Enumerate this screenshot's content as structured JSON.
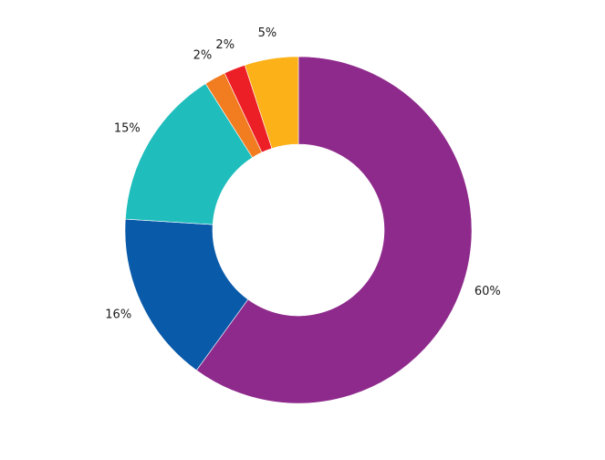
{
  "chart_data": {
    "type": "pie",
    "variant": "donut",
    "title": "",
    "slices": [
      {
        "label": "60%",
        "value": 60,
        "color": "#8e2a8c"
      },
      {
        "label": "16%",
        "value": 16,
        "color": "#0a5aaa"
      },
      {
        "label": "15%",
        "value": 15,
        "color": "#20bdbd"
      },
      {
        "label": "2%",
        "value": 2,
        "color": "#f27c20"
      },
      {
        "label": "2%",
        "value": 2,
        "color": "#ec1f26"
      },
      {
        "label": "5%",
        "value": 5,
        "color": "#fbb117"
      }
    ],
    "legend": "none",
    "start_angle": "top",
    "direction": "clockwise"
  }
}
